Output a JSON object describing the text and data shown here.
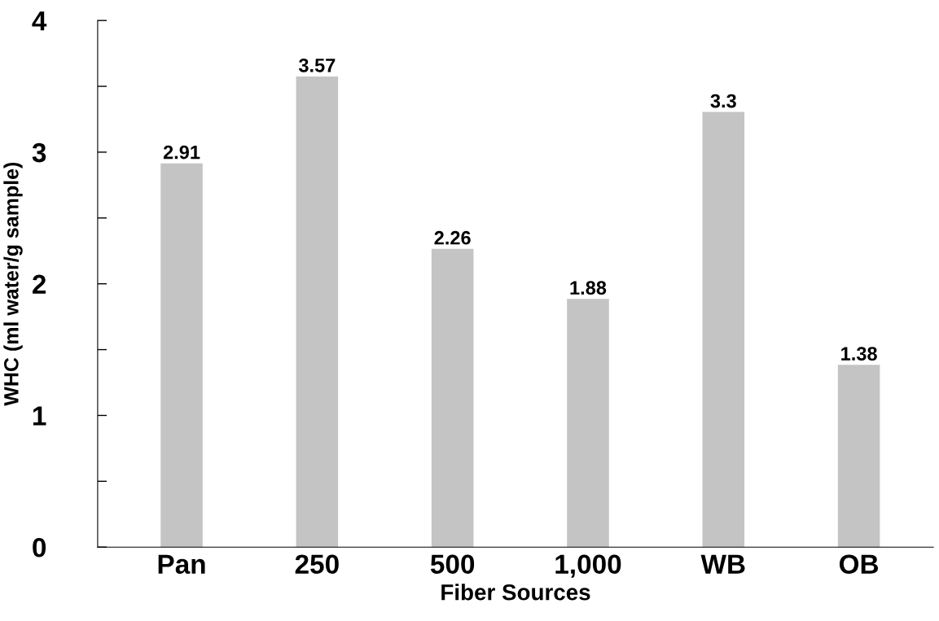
{
  "chart_data": {
    "type": "bar",
    "xlabel": "Fiber Sources",
    "ylabel": "WHC (ml water/g sample)",
    "categories": [
      "Pan",
      "250",
      "500",
      "1,000",
      "WB",
      "OB"
    ],
    "values": [
      2.91,
      3.57,
      2.26,
      1.88,
      3.3,
      1.38
    ],
    "color": "#c4c4c4",
    "ylim": [
      0,
      4
    ],
    "yticks": [
      0,
      {
        "value": 0.5,
        "label": null
      },
      1,
      {
        "value": 1.5,
        "label": null
      },
      2,
      {
        "value": 2.5,
        "label": null
      },
      3,
      {
        "value": 3.5,
        "label": null
      },
      4
    ],
    "data_labels": true,
    "grid": false
  }
}
